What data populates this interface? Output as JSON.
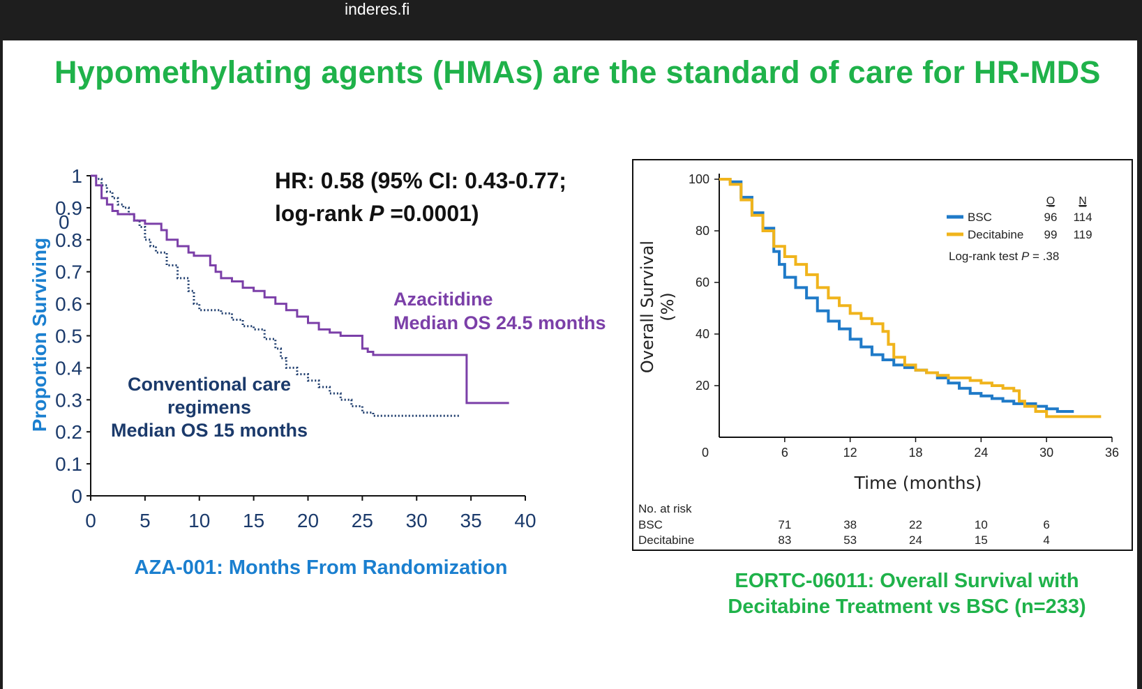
{
  "browser": {
    "site": "inderes.fi"
  },
  "slide": {
    "title": "Hypomethylating agents (HMAs) are the standard of care for HR-MDS",
    "right_caption_line1": "EORTC-06011: Overall Survival with",
    "right_caption_line2": "Decitabine Treatment vs BSC (n=233)"
  },
  "colors": {
    "title": "#1fb24a",
    "aza": "#7b3fa8",
    "conventional": "#1b3a6b",
    "axis_label_left": "#1a7fcf",
    "bsc": "#1f7ac8",
    "decitabine": "#f0b41c"
  },
  "chart_data": [
    {
      "type": "line",
      "title": "",
      "xlabel": "AZA-001: Months From Randomization",
      "ylabel": "Proportion Surviving",
      "xlim": [
        0,
        40
      ],
      "ylim": [
        0,
        1
      ],
      "xticks": [
        "0",
        "5",
        "10",
        "15",
        "20",
        "25",
        "30",
        "35",
        "40"
      ],
      "yticks": [
        "0",
        "0.1",
        "0.2",
        "0.3",
        "0.4",
        "0.5",
        "0.6",
        "0.7",
        "0.8",
        "0.9",
        "1"
      ],
      "stray_tick_label": "0",
      "annotation_hr_line1": "HR: 0.58 (95% CI: 0.43-0.77;",
      "annotation_hr_line2_prefix": "log-rank ",
      "annotation_hr_line2_italic": "P",
      "annotation_hr_line2_suffix": " =0.0001)",
      "series": [
        {
          "name": "Azacitidine",
          "label_line1": "Azacitidine",
          "label_line2": "Median OS 24.5 months",
          "style": "solid",
          "x": [
            0,
            0.5,
            1,
            1.5,
            2,
            2.5,
            3,
            4,
            5,
            6,
            6.5,
            7,
            8,
            9,
            9.5,
            10,
            11,
            11.5,
            12,
            13,
            14,
            15,
            16,
            17,
            18,
            19,
            20,
            21,
            22,
            23,
            24,
            25,
            25.5,
            26,
            30,
            34.5,
            34.6,
            38.5
          ],
          "y": [
            1,
            0.97,
            0.93,
            0.91,
            0.89,
            0.88,
            0.88,
            0.86,
            0.85,
            0.85,
            0.83,
            0.8,
            0.78,
            0.76,
            0.75,
            0.75,
            0.72,
            0.7,
            0.68,
            0.67,
            0.65,
            0.64,
            0.62,
            0.6,
            0.58,
            0.56,
            0.54,
            0.52,
            0.51,
            0.5,
            0.5,
            0.46,
            0.45,
            0.44,
            0.44,
            0.44,
            0.29,
            0.29
          ]
        },
        {
          "name": "Conventional care regimens",
          "label_line1": "Conventional care",
          "label_line2": "regimens",
          "label_line3": "Median OS 15 months",
          "style": "dotted",
          "x": [
            0,
            0.5,
            1,
            1.5,
            2,
            2.5,
            3,
            3.5,
            4,
            4.5,
            5,
            5.5,
            6,
            7,
            8,
            9,
            9.5,
            10,
            11,
            12,
            13,
            14,
            15,
            16,
            17,
            17.5,
            18,
            19,
            20,
            21,
            22,
            23,
            24,
            25,
            26,
            30,
            34
          ],
          "y": [
            1,
            0.99,
            0.97,
            0.95,
            0.93,
            0.91,
            0.9,
            0.88,
            0.86,
            0.84,
            0.8,
            0.78,
            0.76,
            0.72,
            0.68,
            0.64,
            0.6,
            0.58,
            0.58,
            0.57,
            0.55,
            0.53,
            0.52,
            0.49,
            0.46,
            0.43,
            0.4,
            0.38,
            0.36,
            0.34,
            0.32,
            0.3,
            0.28,
            0.26,
            0.25,
            0.25,
            0.25
          ]
        }
      ]
    },
    {
      "type": "line",
      "title": "",
      "xlabel": "Time (months)",
      "ylabel_line1": "Overall Survival",
      "ylabel_line2": "(%)",
      "xlim": [
        0,
        36
      ],
      "ylim": [
        0,
        100
      ],
      "xticks": [
        "0",
        "6",
        "12",
        "18",
        "24",
        "30",
        "36"
      ],
      "yticks": [
        "20",
        "40",
        "60",
        "80",
        "100"
      ],
      "legend": {
        "position": "top-right",
        "header_o": "O",
        "header_n": "N",
        "rows": [
          {
            "name": "BSC",
            "o": "96",
            "n": "114"
          },
          {
            "name": "Decitabine",
            "o": "99",
            "n": "119"
          }
        ],
        "logrank_prefix": "Log-rank test ",
        "logrank_italic": "P",
        "logrank_suffix": " = .38"
      },
      "risk_table": {
        "title": "No. at risk",
        "rows": [
          {
            "name": "BSC",
            "values": [
              "71",
              "38",
              "22",
              "10",
              "6"
            ]
          },
          {
            "name": "Decitabine",
            "values": [
              "83",
              "53",
              "24",
              "15",
              "4"
            ]
          }
        ]
      },
      "series": [
        {
          "name": "BSC",
          "x": [
            0,
            1,
            2,
            3,
            4,
            5,
            5.5,
            6,
            7,
            8,
            9,
            10,
            11,
            12,
            13,
            14,
            15,
            16,
            17,
            18,
            19,
            20,
            21,
            22,
            23,
            24,
            25,
            26,
            27,
            28,
            29,
            30,
            31,
            32.5
          ],
          "y": [
            100,
            99,
            93,
            87,
            81,
            72,
            67,
            62,
            58,
            54,
            49,
            45,
            42,
            38,
            35,
            32,
            30,
            28,
            27,
            26,
            25,
            23,
            21,
            19,
            17,
            16,
            15,
            14,
            13,
            13,
            12,
            11,
            10,
            10
          ]
        },
        {
          "name": "Decitabine",
          "x": [
            0,
            1,
            2,
            3,
            4,
            5,
            6,
            7,
            8,
            9,
            10,
            11,
            12,
            13,
            14,
            15,
            15.5,
            16,
            17,
            18,
            19,
            20,
            21,
            22,
            23,
            24,
            25,
            26,
            27,
            27.5,
            28,
            29,
            30,
            33,
            35
          ],
          "y": [
            100,
            98,
            92,
            86,
            80,
            74,
            70,
            67,
            63,
            58,
            54,
            51,
            48,
            46,
            44,
            41,
            36,
            31,
            28,
            26,
            25,
            24,
            23,
            23,
            22,
            21,
            20,
            19,
            18,
            14,
            12,
            10,
            8,
            8,
            8
          ]
        }
      ]
    }
  ]
}
